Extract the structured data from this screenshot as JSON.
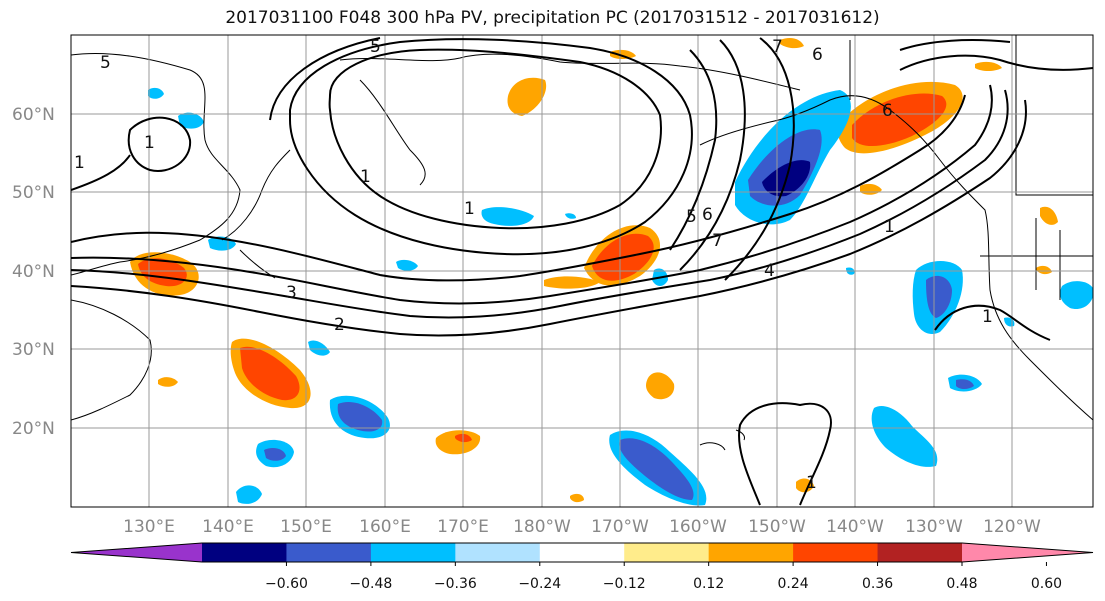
{
  "title": "2017031100 F048 300 hPa PV, precipitation PC (2017031512 - 2017031612)",
  "lat_labels": [
    "60°N",
    "50°N",
    "40°N",
    "30°N",
    "20°N"
  ],
  "lon_labels": [
    "130°E",
    "140°E",
    "150°E",
    "160°E",
    "170°E",
    "180°W",
    "170°W",
    "160°W",
    "150°W",
    "140°W",
    "130°W",
    "120°W"
  ],
  "contour_labels": [
    "5",
    "5",
    "7",
    "6",
    "1",
    "1",
    "1",
    "2",
    "3",
    "1",
    "5",
    "6",
    "7",
    "4",
    "1",
    "1",
    "1",
    "6"
  ],
  "colorbar": {
    "colors": [
      "#9933cc",
      "#000080",
      "#3a5bcc",
      "#00bfff",
      "#b0e2ff",
      "#ffffff",
      "#ffec8b",
      "#ffa500",
      "#ff4500",
      "#b22222",
      "#ff88aa"
    ],
    "tick_labels": [
      "−0.60",
      "−0.48",
      "−0.36",
      "−0.24",
      "−0.12",
      "0.12",
      "0.24",
      "0.36",
      "0.48",
      "0.60"
    ]
  }
}
